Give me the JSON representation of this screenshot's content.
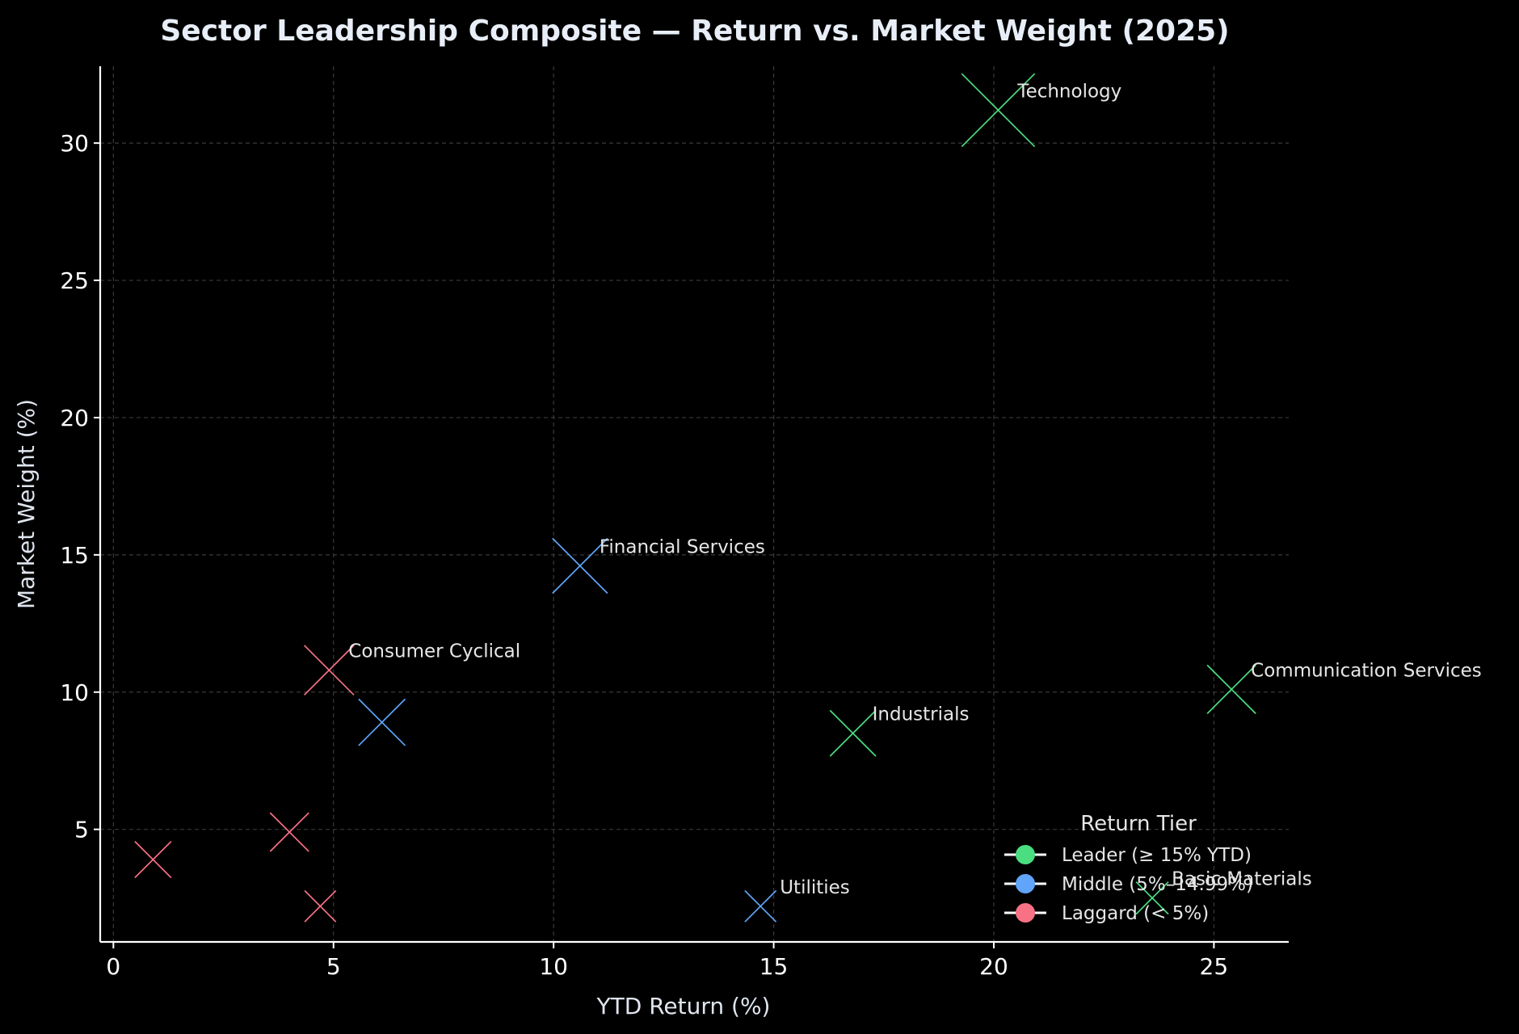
{
  "chart_data": {
    "type": "scatter",
    "title": "Sector Leadership Composite — Return vs. Market Weight (2025)",
    "xlabel": "YTD Return (%)",
    "ylabel": "Market Weight (%)",
    "xlim": [
      -0.3,
      26.7
    ],
    "ylim": [
      0.9,
      32.8
    ],
    "xticks": [
      0,
      5,
      10,
      15,
      20,
      25
    ],
    "yticks": [
      5,
      10,
      15,
      20,
      25,
      30
    ],
    "grid": true,
    "marker": "x",
    "legend": {
      "title": "Return Tier",
      "position": "lower-right",
      "entries": [
        {
          "label": "Leader (≥ 15% YTD)",
          "color": "#4ade80"
        },
        {
          "label": "Middle (5%–14.99%)",
          "color": "#60a5fa"
        },
        {
          "label": "Laggard (< 5%)",
          "color": "#f87185"
        }
      ]
    },
    "points": [
      {
        "label": "Technology",
        "x": 20.1,
        "y": 31.2,
        "tier": 0
      },
      {
        "label": "Communication Services",
        "x": 25.4,
        "y": 10.1,
        "tier": 0
      },
      {
        "label": "Industrials",
        "x": 16.8,
        "y": 8.5,
        "tier": 0
      },
      {
        "label": "Basic Materials",
        "x": 23.6,
        "y": 2.5,
        "tier": 0
      },
      {
        "label": "Financial Services",
        "x": 10.6,
        "y": 14.6,
        "tier": 1
      },
      {
        "label": "",
        "x": 6.1,
        "y": 8.9,
        "tier": 1
      },
      {
        "label": "Utilities",
        "x": 14.7,
        "y": 2.2,
        "tier": 1
      },
      {
        "label": "Consumer Cyclical",
        "x": 4.9,
        "y": 10.8,
        "tier": 2
      },
      {
        "label": "",
        "x": 4.0,
        "y": 4.9,
        "tier": 2
      },
      {
        "label": "",
        "x": 0.9,
        "y": 3.9,
        "tier": 2
      },
      {
        "label": "",
        "x": 4.7,
        "y": 2.2,
        "tier": 2
      }
    ]
  }
}
